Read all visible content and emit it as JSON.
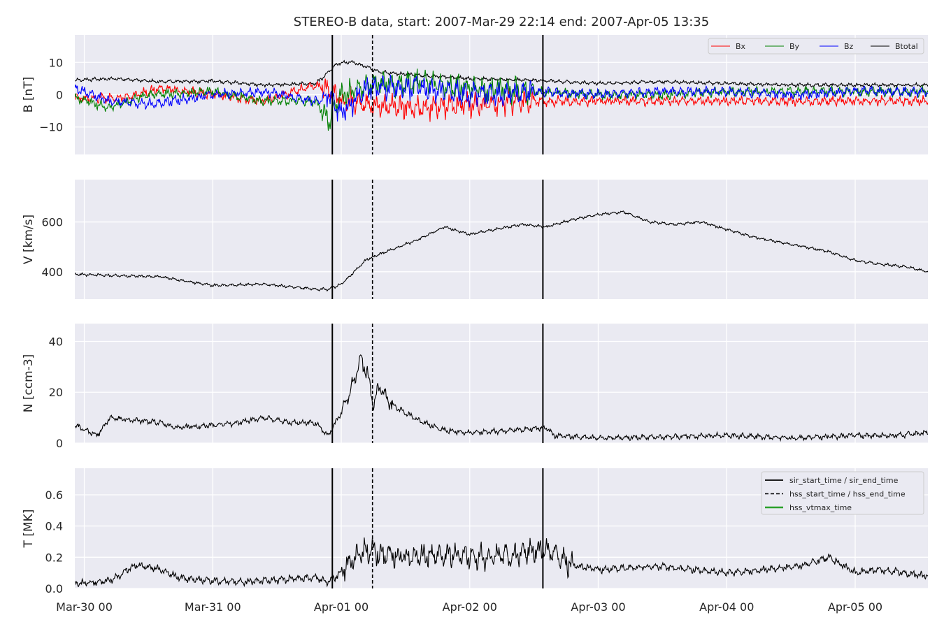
{
  "title": "STEREO-B data, start: 2007-Mar-29 22:14  end: 2007-Apr-05 13:35",
  "colors": {
    "panel_bg": "#eaeaf2",
    "grid": "#ffffff",
    "Bx": "#ff0000",
    "By": "#008000",
    "Bz": "#0000ff",
    "Btotal": "#000000",
    "event": "#000000",
    "vtmax": "#2ca02c"
  },
  "chart_data": [
    {
      "type": "line",
      "ylabel": "B [nT]",
      "ylim": [
        -18.5,
        18.5
      ],
      "yticks": [
        10,
        0,
        -10
      ],
      "yticklabels": [
        "10",
        "0",
        "−10"
      ],
      "legend": {
        "placement": "top-right",
        "entries": [
          "Bx",
          "By",
          "Bz",
          "Btotal"
        ]
      },
      "series": [
        {
          "name": "Btotal",
          "color": "#000000",
          "x": [
            -0.07,
            0.2,
            0.6,
            1.0,
            1.4,
            1.8,
            1.85,
            1.95,
            2.0,
            2.1,
            2.3,
            2.6,
            3.0,
            3.5,
            4.0,
            4.5,
            5.0,
            5.5,
            6.0,
            6.56
          ],
          "y": [
            4.5,
            5,
            4,
            4.2,
            3,
            3.5,
            5,
            9,
            10,
            10,
            7,
            6,
            5,
            4.5,
            3.5,
            4,
            3.5,
            3,
            3,
            3
          ]
        },
        {
          "name": "Bx",
          "color": "#ff0000",
          "x": [
            -0.07,
            0.3,
            0.6,
            1.0,
            1.4,
            1.8,
            1.9,
            2.0,
            2.2,
            2.6,
            3.0,
            3.5,
            4.0,
            4.5,
            5.0,
            5.5,
            6.0,
            6.56
          ],
          "y": [
            -1,
            -1,
            2,
            0,
            -2,
            3,
            2,
            -2,
            -3,
            -4,
            -3,
            -2,
            -2,
            -2,
            -2,
            -2,
            -2,
            -2
          ]
        },
        {
          "name": "By",
          "color": "#008000",
          "x": [
            -0.07,
            0.2,
            0.5,
            1.0,
            1.4,
            1.8,
            1.9,
            2.0,
            2.2,
            2.6,
            3.0,
            3.5,
            4.0,
            4.5,
            5.0,
            5.5,
            6.0,
            6.56
          ],
          "y": [
            -1,
            -4,
            0,
            1,
            -2,
            -2,
            -8,
            0,
            3,
            4,
            2,
            1,
            0,
            0,
            1,
            1,
            1,
            1
          ]
        },
        {
          "name": "Bz",
          "color": "#0000ff",
          "x": [
            -0.07,
            0.2,
            0.5,
            1.0,
            1.4,
            1.8,
            1.9,
            2.0,
            2.2,
            2.6,
            3.0,
            3.5,
            4.0,
            4.5,
            5.0,
            5.5,
            6.0,
            6.56
          ],
          "y": [
            2,
            -2,
            -3,
            0,
            1,
            -2,
            0,
            -6,
            2,
            2,
            0,
            1,
            0,
            1,
            1,
            0,
            1,
            1
          ]
        }
      ]
    },
    {
      "type": "line",
      "ylabel": "V [km/s]",
      "ylim": [
        290,
        770
      ],
      "yticks": [
        600,
        400
      ],
      "yticklabels": [
        "600",
        "400"
      ],
      "series": [
        {
          "color": "#000000",
          "x": [
            -0.07,
            0.2,
            0.6,
            0.7,
            1.0,
            1.4,
            1.8,
            1.9,
            2.0,
            2.1,
            2.2,
            2.4,
            2.6,
            2.8,
            3.0,
            3.2,
            3.4,
            3.6,
            3.8,
            4.0,
            4.2,
            4.4,
            4.6,
            4.8,
            5.0,
            5.2,
            5.5,
            5.8,
            6.0,
            6.2,
            6.4,
            6.56
          ],
          "y": [
            390,
            385,
            380,
            370,
            345,
            350,
            330,
            330,
            350,
            400,
            450,
            490,
            530,
            580,
            550,
            570,
            590,
            580,
            610,
            630,
            640,
            600,
            590,
            600,
            570,
            540,
            510,
            480,
            445,
            430,
            420,
            400
          ]
        }
      ]
    },
    {
      "type": "line",
      "ylabel": "N [ccm-3]",
      "ylim": [
        0,
        47
      ],
      "yticks": [
        40,
        20,
        0
      ],
      "yticklabels": [
        "40",
        "20",
        "0"
      ],
      "series": [
        {
          "color": "#000000",
          "x": [
            -0.07,
            0.1,
            0.2,
            0.6,
            0.7,
            1.0,
            1.2,
            1.4,
            1.6,
            1.8,
            1.9,
            2.0,
            2.1,
            2.15,
            2.2,
            2.25,
            2.3,
            2.4,
            2.5,
            2.6,
            2.8,
            3.0,
            3.3,
            3.6,
            3.65,
            4.0,
            4.5,
            5.0,
            5.5,
            6.0,
            6.3,
            6.56
          ],
          "y": [
            7,
            3,
            10,
            8,
            6,
            7,
            8,
            10,
            8,
            8,
            3,
            12,
            25,
            33,
            28,
            16,
            22,
            15,
            12,
            9,
            5,
            4,
            5,
            6,
            3,
            2,
            2.5,
            3,
            2,
            3,
            3,
            4
          ]
        }
      ]
    },
    {
      "type": "line",
      "ylabel": "T [MK]",
      "ylim": [
        0,
        0.77
      ],
      "yticks": [
        0.6,
        0.4,
        0.2,
        0.0
      ],
      "yticklabels": [
        "0.6",
        "0.4",
        "0.2",
        "0.0"
      ],
      "legend": {
        "placement": "top-right",
        "entries": [
          "sir_start_time / sir_end_time",
          "hss_start_time / hss_end_time",
          "hss_vtmax_time"
        ]
      },
      "series": [
        {
          "color": "#000000",
          "x": [
            -0.07,
            0.2,
            0.4,
            0.6,
            0.7,
            0.8,
            1.0,
            1.2,
            1.4,
            1.6,
            1.8,
            1.9,
            2.0,
            2.1,
            2.2,
            2.3,
            2.5,
            2.8,
            3.0,
            3.3,
            3.6,
            3.8,
            4.0,
            4.2,
            4.5,
            5.0,
            5.3,
            5.6,
            5.8,
            6.0,
            6.2,
            6.56
          ],
          "y": [
            0.03,
            0.05,
            0.15,
            0.12,
            0.08,
            0.06,
            0.05,
            0.04,
            0.05,
            0.06,
            0.07,
            0.04,
            0.1,
            0.2,
            0.25,
            0.22,
            0.2,
            0.22,
            0.2,
            0.22,
            0.25,
            0.15,
            0.12,
            0.13,
            0.14,
            0.1,
            0.12,
            0.15,
            0.2,
            0.1,
            0.12,
            0.08
          ]
        }
      ]
    }
  ],
  "xaxis": {
    "start_time": "2007-Mar-29 22:14",
    "end_time": "2007-Apr-05 13:35",
    "ticks": [
      {
        "date": "2007-Mar-30 00:00",
        "label": "Mar-30 00"
      },
      {
        "date": "2007-Mar-31 00:00",
        "label": "Mar-31 00"
      },
      {
        "date": "2007-Apr-01 00:00",
        "label": "Apr-01 00"
      },
      {
        "date": "2007-Apr-02 00:00",
        "label": "Apr-02 00"
      },
      {
        "date": "2007-Apr-03 00:00",
        "label": "Apr-03 00"
      },
      {
        "date": "2007-Apr-04 00:00",
        "label": "Apr-04 00"
      },
      {
        "date": "2007-Apr-05 00:00",
        "label": "Apr-05 00"
      }
    ]
  },
  "events": [
    {
      "kind": "sir",
      "label": "sir_start_time / sir_end_time",
      "times": [
        "2007-Mar-31 22:20",
        "2007-Apr-02 13:40"
      ],
      "style": "solid"
    },
    {
      "kind": "hss",
      "label": "hss_start_time / hss_end_time",
      "times": [
        "2007-Apr-01 05:50"
      ],
      "style": "dashed"
    },
    {
      "kind": "vtmax",
      "label": "hss_vtmax_time",
      "times": [],
      "style": "solid"
    }
  ]
}
